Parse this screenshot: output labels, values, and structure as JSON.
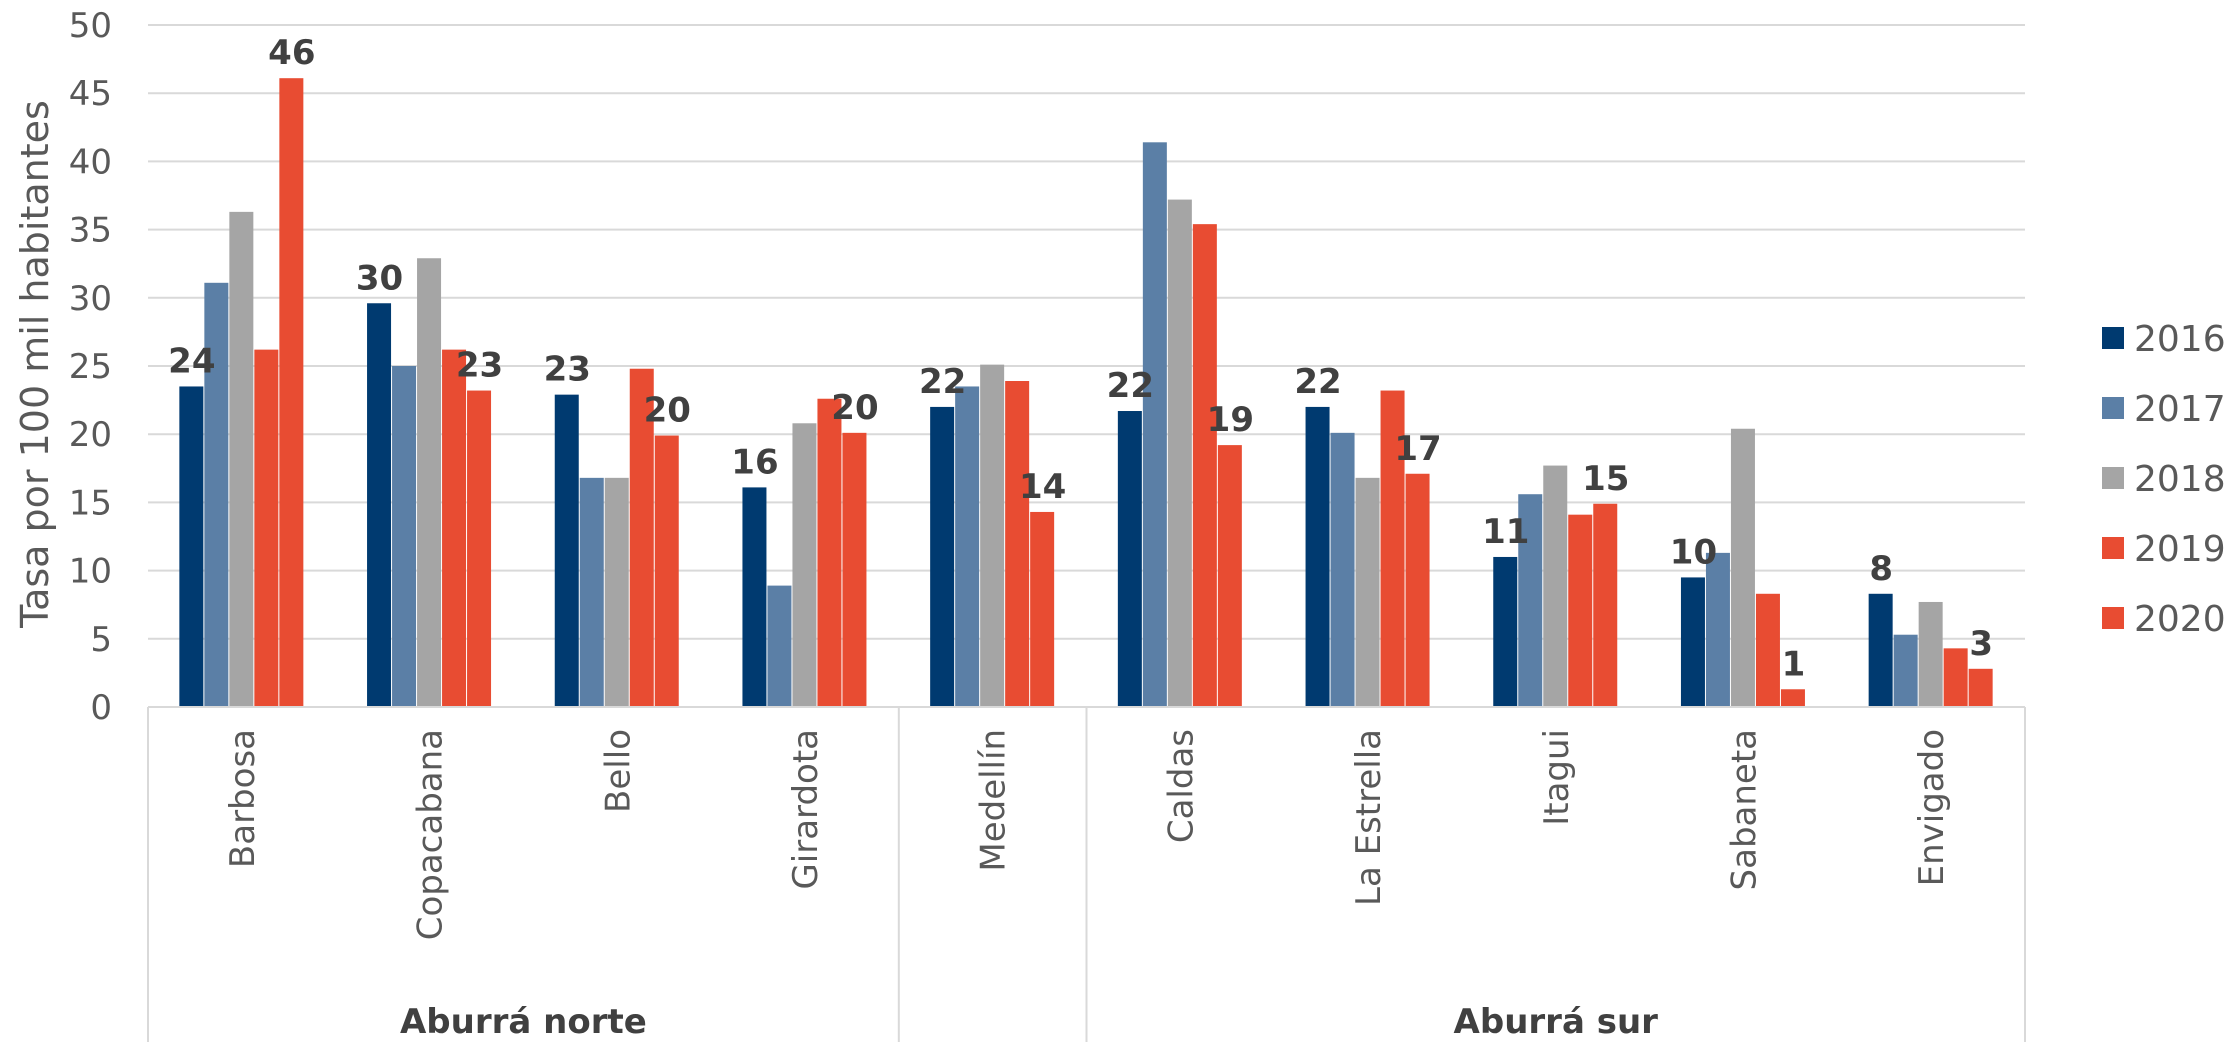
{
  "chart_data": {
    "type": "bar",
    "title": "",
    "ylabel": "Tasa por 100 mil habitantes",
    "ylim": [
      0,
      50
    ],
    "yticks": [
      0,
      5,
      10,
      15,
      20,
      25,
      30,
      35,
      40,
      45,
      50
    ],
    "grid": true,
    "legend": "right",
    "categories": [
      "Barbosa",
      "Copacabana",
      "Bello",
      "Girardota",
      "Medellín",
      "Caldas",
      "La Estrella",
      "Itagui",
      "Sabaneta",
      "Envigado"
    ],
    "groups": [
      {
        "label": "Aburrá norte",
        "start": 0,
        "end": 3
      },
      {
        "label": "",
        "start": 4,
        "end": 4
      },
      {
        "label": "Aburrá sur",
        "start": 5,
        "end": 9
      }
    ],
    "series": [
      {
        "name": "2016",
        "color": "#003a70",
        "values": [
          23.5,
          29.6,
          22.9,
          16.1,
          22.0,
          21.7,
          22.0,
          11.0,
          9.5,
          8.3
        ]
      },
      {
        "name": "2017",
        "color": "#5b7fa6",
        "values": [
          31.1,
          25.0,
          16.8,
          8.9,
          23.5,
          41.4,
          20.1,
          15.6,
          11.3,
          5.3
        ]
      },
      {
        "name": "2018",
        "color": "#a5a5a5",
        "values": [
          36.3,
          32.9,
          16.8,
          20.8,
          25.1,
          37.2,
          16.8,
          17.7,
          20.4,
          7.7
        ]
      },
      {
        "name": "2019",
        "color": "#e84c32",
        "values": [
          26.2,
          26.2,
          24.8,
          22.6,
          23.9,
          35.4,
          23.2,
          14.1,
          8.3,
          4.3
        ]
      },
      {
        "name": "2020",
        "color": "#e84c32",
        "values": [
          46.1,
          23.2,
          19.9,
          20.1,
          14.3,
          19.2,
          17.1,
          14.9,
          1.3,
          2.8
        ]
      }
    ],
    "data_labels": [
      {
        "category": "Barbosa",
        "labels": [
          {
            "series": "2016",
            "text": "24"
          },
          {
            "series": "2020",
            "text": "46"
          }
        ]
      },
      {
        "category": "Copacabana",
        "labels": [
          {
            "series": "2016",
            "text": "30"
          },
          {
            "series": "2020",
            "text": "23"
          }
        ]
      },
      {
        "category": "Bello",
        "labels": [
          {
            "series": "2016",
            "text": "23"
          },
          {
            "series": "2020",
            "text": "20"
          }
        ]
      },
      {
        "category": "Girardota",
        "labels": [
          {
            "series": "2016",
            "text": "16"
          },
          {
            "series": "2020",
            "text": "20"
          }
        ]
      },
      {
        "category": "Medellín",
        "labels": [
          {
            "series": "2016",
            "text": "22"
          },
          {
            "series": "2020",
            "text": "14"
          }
        ]
      },
      {
        "category": "Caldas",
        "labels": [
          {
            "series": "2016",
            "text": "22"
          },
          {
            "series": "2020",
            "text": "19"
          }
        ]
      },
      {
        "category": "La Estrella",
        "labels": [
          {
            "series": "2016",
            "text": "22"
          },
          {
            "series": "2020",
            "text": "17"
          }
        ]
      },
      {
        "category": "Itagui",
        "labels": [
          {
            "series": "2016",
            "text": "11"
          },
          {
            "series": "2020",
            "text": "15"
          }
        ]
      },
      {
        "category": "Sabaneta",
        "labels": [
          {
            "series": "2016",
            "text": "10"
          },
          {
            "series": "2020",
            "text": "1"
          }
        ]
      },
      {
        "category": "Envigado",
        "labels": [
          {
            "series": "2016",
            "text": "8"
          },
          {
            "series": "2020",
            "text": "3"
          }
        ]
      }
    ]
  }
}
